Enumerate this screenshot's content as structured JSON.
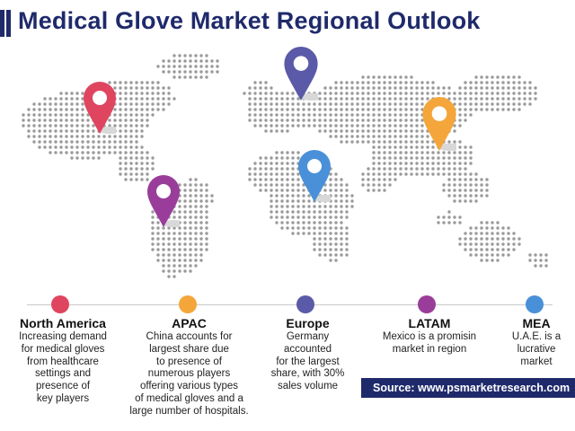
{
  "title": "Medical Glove Market Regional Outlook",
  "colors": {
    "title": "#1f2a6b",
    "north_america": "#e0455f",
    "apac": "#f4a63a",
    "europe": "#5a5aa8",
    "latam": "#9a3d9a",
    "mea": "#4a90d9",
    "source_bg": "#1f2a6b"
  },
  "pins": [
    {
      "region": "North America",
      "icon": "map-pin-icon",
      "color": "#e0455f"
    },
    {
      "region": "Europe",
      "icon": "map-pin-icon",
      "color": "#5a5aa8"
    },
    {
      "region": "APAC",
      "icon": "map-pin-icon",
      "color": "#f4a63a"
    },
    {
      "region": "MEA",
      "icon": "map-pin-icon",
      "color": "#4a90d9"
    },
    {
      "region": "LATAM",
      "icon": "map-pin-icon",
      "color": "#9a3d9a"
    }
  ],
  "regions": [
    {
      "name": "North America",
      "lines": [
        "Increasing demand",
        "for medical gloves",
        "from healthcare",
        "settings and",
        "presence of",
        "key players"
      ]
    },
    {
      "name": "APAC",
      "lines": [
        "China accounts for",
        "largest share due",
        "to presence of",
        "numerous players",
        "offering various types",
        "of medical gloves and a",
        "large number of hospitals."
      ]
    },
    {
      "name": "Europe",
      "lines": [
        "Germany",
        "accounted",
        "for the largest",
        "share, with 30%",
        "sales volume"
      ]
    },
    {
      "name": "LATAM",
      "lines": [
        "Mexico is a promisin",
        "market in region"
      ]
    },
    {
      "name": "MEA",
      "lines": [
        "U.A.E. is a",
        "lucrative",
        "market"
      ]
    }
  ],
  "source": "Source: www.psmarketresearch.com"
}
